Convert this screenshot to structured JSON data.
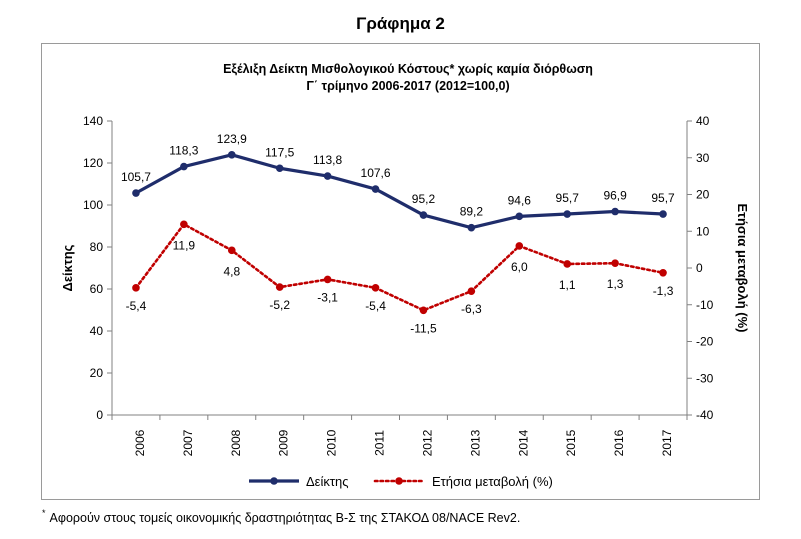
{
  "heading": "Γράφημα 2",
  "footnote": {
    "marker": "*",
    "text": "Αφορούν στους τομείς οικονομικής δραστηριότητας Β-Σ της ΣΤΑΚΟΔ 08/NACE Rev2."
  },
  "colors": {
    "index_series": "#1f2d6b",
    "change_series": "#c00000",
    "axis": "#808080"
  },
  "chart_data": {
    "type": "line",
    "title": "Εξέλιξη Δείκτη Μισθολογικού Κόστους* χωρίς καμία διόρθωση",
    "subtitle": "Γ΄ τρίμηνο 2006-2017 (2012=100,0)",
    "categories": [
      "2006",
      "2007",
      "2008",
      "2009",
      "2010",
      "2011",
      "2012",
      "2013",
      "2014",
      "2015",
      "2016",
      "2017"
    ],
    "ylabel": "Δείκτης",
    "y2label": "Ετήσια μεταβολή (%)",
    "ylim": [
      0,
      140
    ],
    "yticks": [
      "0",
      "20",
      "40",
      "60",
      "80",
      "100",
      "120",
      "140"
    ],
    "y2lim": [
      -40,
      40
    ],
    "y2ticks": [
      "-40",
      "-30",
      "-20",
      "-10",
      "0",
      "10",
      "20",
      "30",
      "40"
    ],
    "grid": false,
    "legend_position": "bottom",
    "series": [
      {
        "name": "Δείκτης",
        "axis": "left",
        "style": "solid",
        "values": [
          105.7,
          118.3,
          123.9,
          117.5,
          113.8,
          107.6,
          95.2,
          89.2,
          94.6,
          95.7,
          96.9,
          95.7
        ],
        "labels": [
          "105,7",
          "118,3",
          "123,9",
          "117,5",
          "113,8",
          "107,6",
          "95,2",
          "89,2",
          "94,6",
          "95,7",
          "96,9",
          "95,7"
        ]
      },
      {
        "name": "Ετήσια μεταβολή (%)",
        "axis": "right",
        "style": "dotted",
        "values": [
          -5.4,
          11.9,
          4.8,
          -5.2,
          -3.1,
          -5.4,
          -11.5,
          -6.3,
          6.0,
          1.1,
          1.3,
          -1.3
        ],
        "labels": [
          "-5,4",
          "11,9",
          "4,8",
          "-5,2",
          "-3,1",
          "-5,4",
          "-11,5",
          "-6,3",
          "6,0",
          "1,1",
          "1,3",
          "-1,3"
        ]
      }
    ]
  }
}
